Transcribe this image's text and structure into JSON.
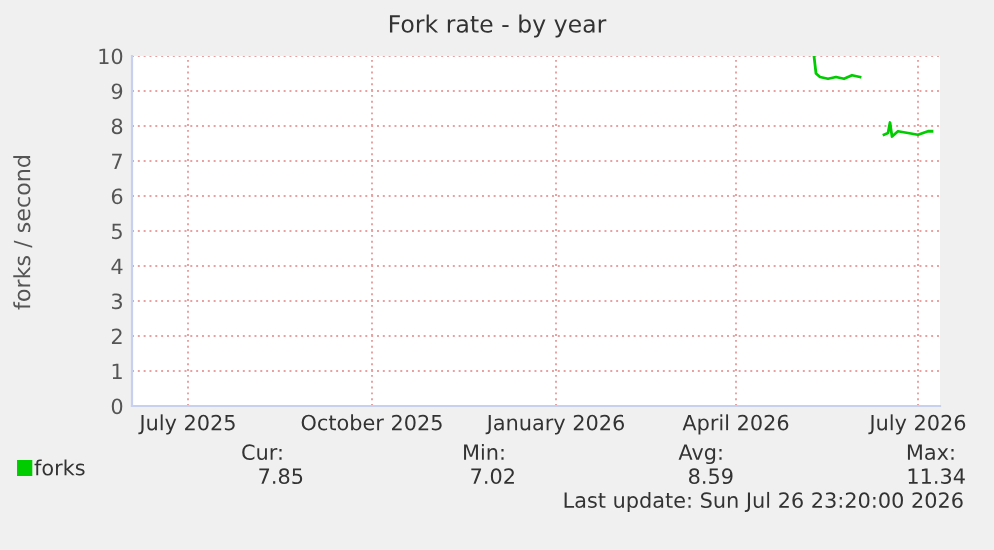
{
  "chart_data": {
    "type": "line",
    "title": "Fork rate - by year",
    "ylabel": "forks / second",
    "x": [
      "2026-05-24",
      "2026-05-25",
      "2026-05-27",
      "2026-05-31",
      "2026-06-04",
      "2026-06-08",
      "2026-06-12",
      "2026-06-16",
      "2026-06-17",
      "2026-06-28",
      "2026-06-30",
      "2026-07-01",
      "2026-07-02",
      "2026-07-05",
      "2026-07-10",
      "2026-07-15",
      "2026-07-20",
      "2026-07-22"
    ],
    "series": [
      {
        "name": "forks",
        "color": "#00cc00",
        "values": [
          10,
          9.5,
          9.4,
          9.35,
          9.4,
          9.35,
          9.45,
          9.4,
          null,
          7.75,
          7.8,
          8.1,
          7.7,
          7.85,
          7.8,
          7.75,
          7.85,
          7.85
        ]
      }
    ],
    "xlim": [
      "2025-06-17",
      "2026-07-26"
    ],
    "xticks": [
      {
        "value": "2025-07-15",
        "label": "July 2025"
      },
      {
        "value": "2025-10-15",
        "label": "October 2025"
      },
      {
        "value": "2026-01-15",
        "label": "January 2026"
      },
      {
        "value": "2026-04-15",
        "label": "April 2026"
      },
      {
        "value": "2026-07-15",
        "label": "July 2026"
      }
    ],
    "ylim": [
      0,
      10
    ],
    "yticks": [
      0,
      1,
      2,
      3,
      4,
      5,
      6,
      7,
      8,
      9,
      10
    ],
    "grid": true,
    "legend": "bottom left",
    "annotations": [
      "Cur:",
      "Min:",
      "Avg:",
      "Max:",
      "7.85",
      "7.02",
      "8.59",
      "11.34",
      "Last update: Sun Jul 26 23:20:00 2026"
    ]
  }
}
